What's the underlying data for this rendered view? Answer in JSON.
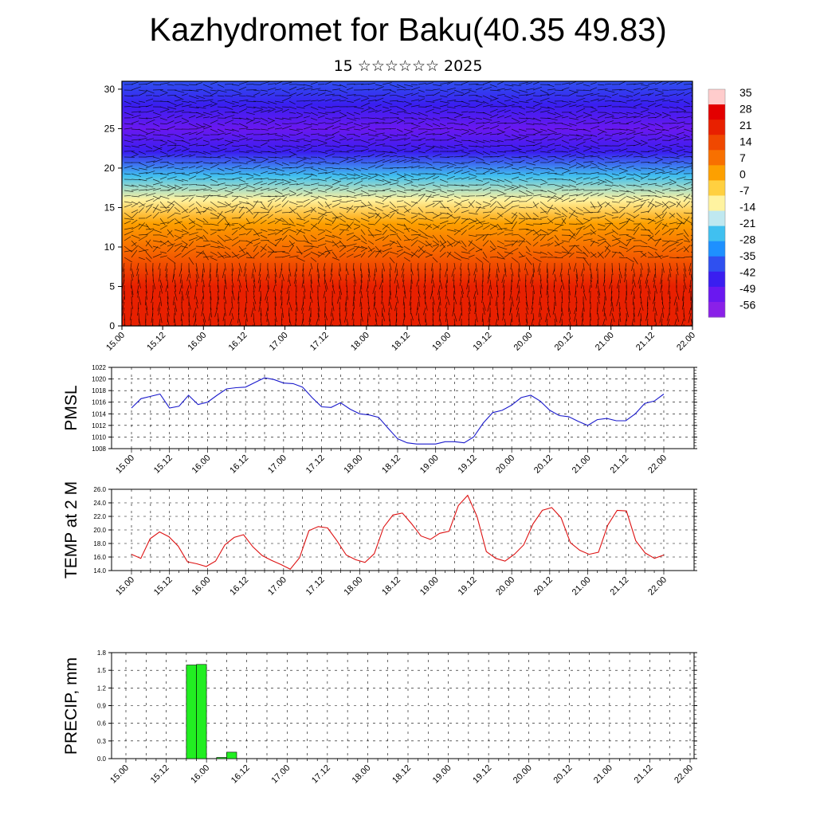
{
  "page": {
    "title": "Kazhydromet for Baku(40.35 49.83)",
    "subtitle": "15 ☆☆☆☆☆☆ 2025"
  },
  "colors": {
    "pmsl_line": "#1a1acc",
    "temp_line": "#dd1111",
    "precip_bar": "#22ee22",
    "axis": "#000000",
    "grid": "#000000"
  },
  "time_ticks": [
    "15.00",
    "15.12",
    "16.00",
    "16.12",
    "17.00",
    "17.12",
    "18.00",
    "18.12",
    "19.00",
    "19.12",
    "20.00",
    "20.12",
    "21.00",
    "21.12",
    "22.00"
  ],
  "chart_data": [
    {
      "type": "heatmap",
      "panel": "cross-section",
      "title": "",
      "xlabel": "",
      "ylabel": "",
      "x": [
        "15.00",
        "15.12",
        "16.00",
        "16.12",
        "17.00",
        "17.12",
        "18.00",
        "18.12",
        "19.00",
        "19.12",
        "20.00",
        "20.12",
        "21.00",
        "21.12",
        "22.00"
      ],
      "y_ticks": [
        0,
        5,
        10,
        15,
        20,
        25,
        30
      ],
      "ylim": [
        0,
        31
      ],
      "colorbar_labels": [
        "35",
        "28",
        "21",
        "14",
        "7",
        "0",
        "-7",
        "-14",
        "-21",
        "-28",
        "-35",
        "-42",
        "-49",
        "-56"
      ],
      "colorbar_colors": [
        "#ffcccc",
        "#e30000",
        "#e82000",
        "#f04800",
        "#f87000",
        "#fda000",
        "#ffd040",
        "#fff3a0",
        "#bfe8f0",
        "#40c0f0",
        "#1e90ff",
        "#2f50f0",
        "#3a1ef0",
        "#6a18f0",
        "#8a20e8"
      ],
      "temperature_profile": [
        {
          "height": 0,
          "value": 30
        },
        {
          "height": 5,
          "value": 24
        },
        {
          "height": 10,
          "value": 14
        },
        {
          "height": 13,
          "value": 7
        },
        {
          "height": 16,
          "value": -7
        },
        {
          "height": 19,
          "value": -28
        },
        {
          "height": 22,
          "value": -49
        },
        {
          "height": 25,
          "value": -56
        },
        {
          "height": 28,
          "value": -49
        },
        {
          "height": 31,
          "value": -42
        }
      ],
      "overlay": "wind barbs"
    },
    {
      "type": "line",
      "panel": "pmsl",
      "ylabel": "PMSL",
      "ylim": [
        1008,
        1022
      ],
      "y_ticks": [
        1008,
        1010,
        1012,
        1014,
        1016,
        1018,
        1020,
        1022
      ],
      "x_ticks": [
        "15.00",
        "15.12",
        "16.00",
        "16.12",
        "17.00",
        "17.12",
        "18.00",
        "18.12",
        "19.00",
        "19.12",
        "20.00",
        "20.12",
        "21.00",
        "21.12",
        "22.00"
      ],
      "series": [
        {
          "values": [
            1015.0,
            1016.6,
            1017.0,
            1017.4,
            1015.0,
            1015.3,
            1017.2,
            1015.6,
            1016.0,
            1017.2,
            1018.3,
            1018.5,
            1018.6,
            1019.4,
            1020.2,
            1019.9,
            1019.3,
            1019.2,
            1018.6,
            1016.8,
            1015.2,
            1015.1,
            1015.9,
            1014.8,
            1014.0,
            1013.8,
            1013.4,
            1011.5,
            1009.7,
            1009.0,
            1008.8,
            1008.8,
            1008.8,
            1009.2,
            1009.2,
            1009.0,
            1010.0,
            1012.4,
            1014.2,
            1014.6,
            1015.5,
            1016.8,
            1017.2,
            1016.2,
            1014.6,
            1013.7,
            1013.5,
            1012.7,
            1012.0,
            1013.0,
            1013.2,
            1012.8,
            1012.8,
            1014.0,
            1015.8,
            1016.2,
            1017.4
          ]
        }
      ]
    },
    {
      "type": "line",
      "panel": "temperature",
      "ylabel": "TEMP at 2 M",
      "ylim": [
        14.0,
        26.0
      ],
      "y_ticks": [
        "14.0",
        "16.0",
        "18.0",
        "20.0",
        "22.0",
        "24.0",
        "26.0"
      ],
      "x_ticks": [
        "15.00",
        "15.12",
        "16.00",
        "16.12",
        "17.00",
        "17.12",
        "18.00",
        "18.12",
        "19.00",
        "19.12",
        "20.00",
        "20.12",
        "21.00",
        "21.12",
        "22.00"
      ],
      "series": [
        {
          "values": [
            16.4,
            15.8,
            18.7,
            19.7,
            19.0,
            17.6,
            15.3,
            15.0,
            14.6,
            15.4,
            17.8,
            18.9,
            19.3,
            17.5,
            16.2,
            15.5,
            14.9,
            14.2,
            15.9,
            19.9,
            20.5,
            20.3,
            18.4,
            16.3,
            15.6,
            15.2,
            16.5,
            20.4,
            22.2,
            22.5,
            20.9,
            19.1,
            18.6,
            19.5,
            19.8,
            23.6,
            25.1,
            22.0,
            16.8,
            15.8,
            15.4,
            16.4,
            17.8,
            20.9,
            22.9,
            23.3,
            21.8,
            18.1,
            17.0,
            16.4,
            16.7,
            20.7,
            22.9,
            22.8,
            18.4,
            16.6,
            15.8,
            16.3
          ]
        }
      ]
    },
    {
      "type": "bar",
      "panel": "precipitation",
      "ylabel": "PRECIP, mm",
      "ylim": [
        0.0,
        1.8
      ],
      "y_ticks": [
        "0.0",
        "0.3",
        "0.6",
        "0.9",
        "1.2",
        "1.5",
        "1.8"
      ],
      "x_ticks": [
        "15.00",
        "15.12",
        "16.00",
        "16.12",
        "17.00",
        "17.12",
        "18.00",
        "18.12",
        "19.00",
        "19.12",
        "20.00",
        "20.12",
        "21.00",
        "21.12",
        "22.00"
      ],
      "bars": [
        {
          "start_hour": 18,
          "end_hour": 21,
          "value": 1.59
        },
        {
          "start_hour": 21,
          "end_hour": 24,
          "value": 1.6
        },
        {
          "start_hour": 27,
          "end_hour": 30,
          "value": 0.02
        },
        {
          "start_hour": 30,
          "end_hour": 33,
          "value": 0.11
        }
      ]
    }
  ]
}
